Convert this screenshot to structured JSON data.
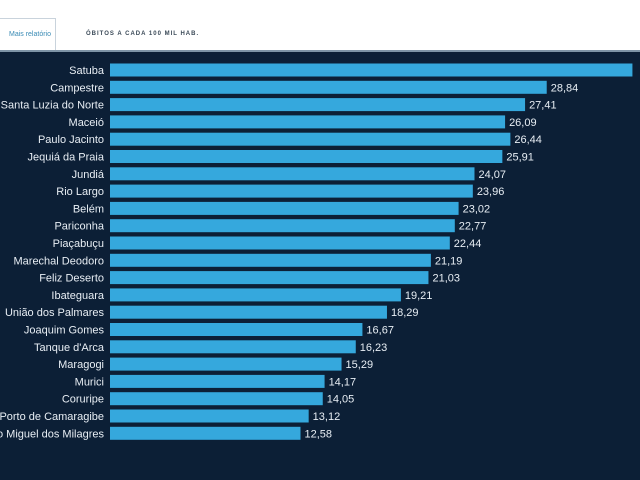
{
  "header": {
    "tab_report": "Mais relatório",
    "tab_metric": "ÓBITOS A CADA 100 MIL HAB."
  },
  "colors": {
    "bar": "#35a8dd",
    "background": "#0c1f36"
  },
  "chart_data": {
    "type": "bar",
    "orientation": "horizontal",
    "title": "",
    "xlabel": "",
    "ylabel": "",
    "xlim": [
      0,
      35
    ],
    "grid": false,
    "categories": [
      "Satuba",
      "Campestre",
      "Santa Luzia do Norte",
      "Maceió",
      "Paulo Jacinto",
      "Jequiá da Praia",
      "Jundiá",
      "Rio Largo",
      "Belém",
      "Pariconha",
      "Piaçabuçu",
      "Marechal Deodoro",
      "Feliz Deserto",
      "Ibateguara",
      "União dos Palmares",
      "Joaquim Gomes",
      "Tanque d'Arca",
      "Maragogi",
      "Murici",
      "Coruripe",
      "Porto de Camaragibe",
      "São Miguel dos Milagres"
    ],
    "values": [
      34.5,
      28.84,
      27.41,
      26.09,
      26.44,
      25.91,
      24.07,
      23.96,
      23.02,
      22.77,
      22.44,
      21.19,
      21.03,
      19.21,
      18.29,
      16.67,
      16.23,
      15.29,
      14.17,
      14.05,
      13.12,
      12.58
    ],
    "value_labels": [
      "",
      "28,84",
      "27,41",
      "26,09",
      "26,44",
      "25,91",
      "24,07",
      "23,96",
      "23,02",
      "22,77",
      "22,44",
      "21,19",
      "21,03",
      "19,21",
      "18,29",
      "16,67",
      "16,23",
      "15,29",
      "14,17",
      "14,05",
      "13,12",
      "12,58"
    ]
  }
}
